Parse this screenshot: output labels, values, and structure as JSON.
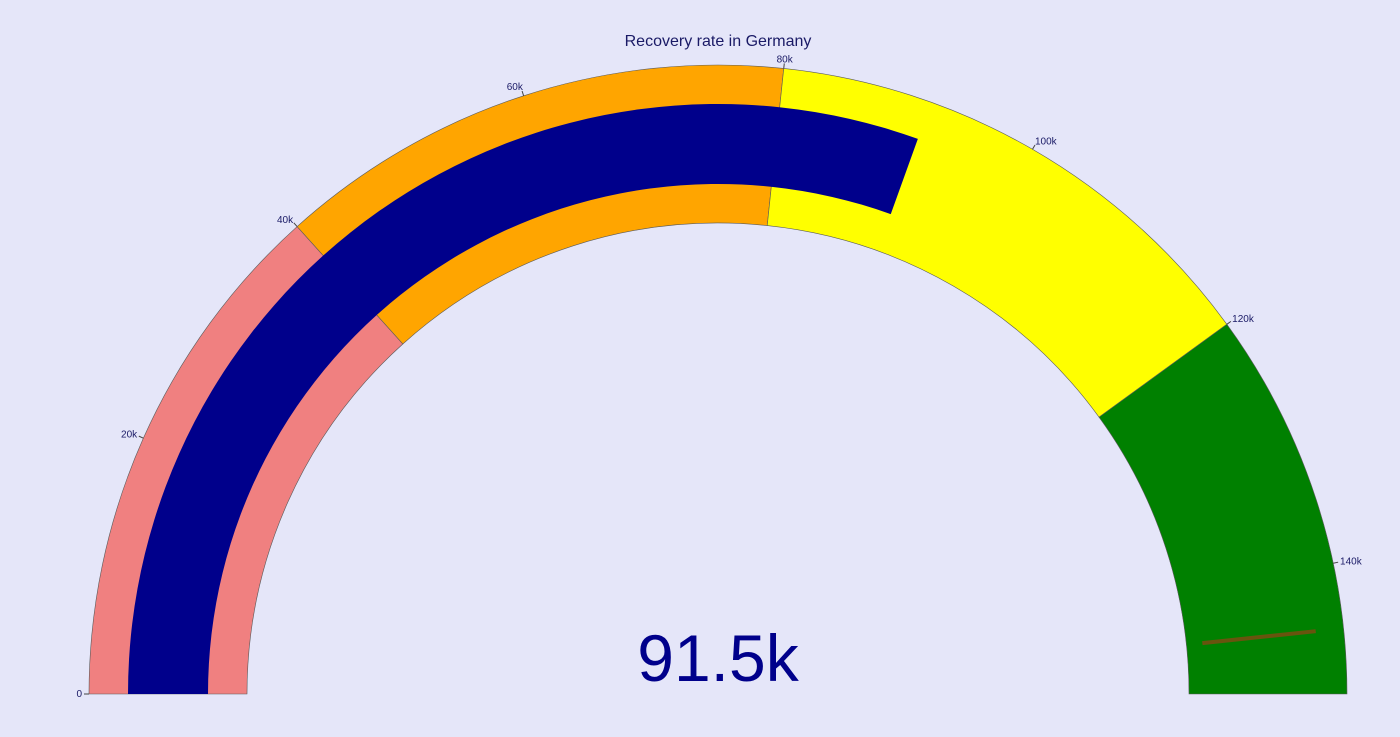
{
  "chart_data": {
    "type": "gauge",
    "title": "Recovery rate in Germany",
    "value": 91500,
    "value_label": "91.5k",
    "axis_range": [
      0,
      150000
    ],
    "ticks": [
      {
        "value": 0,
        "label": "0"
      },
      {
        "value": 20000,
        "label": "20k"
      },
      {
        "value": 40000,
        "label": "40k"
      },
      {
        "value": 60000,
        "label": "60k"
      },
      {
        "value": 80000,
        "label": "80k"
      },
      {
        "value": 100000,
        "label": "100k"
      },
      {
        "value": 120000,
        "label": "120k"
      },
      {
        "value": 140000,
        "label": "140k"
      }
    ],
    "steps": [
      {
        "range": [
          0,
          40000
        ],
        "color": "#f08080"
      },
      {
        "range": [
          40000,
          80000
        ],
        "color": "#ffa500"
      },
      {
        "range": [
          80000,
          120000
        ],
        "color": "#ffff00"
      },
      {
        "range": [
          120000,
          150000
        ],
        "color": "#008000"
      }
    ],
    "bar_color": "#00008b",
    "threshold": {
      "value": 145000,
      "color": "#8b4513"
    }
  }
}
